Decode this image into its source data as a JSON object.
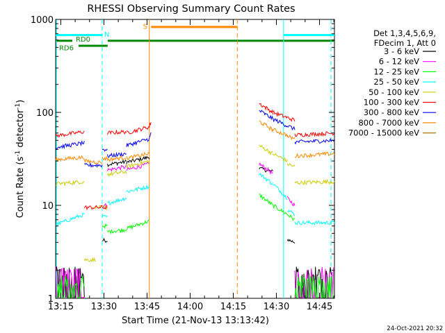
{
  "chart_data": {
    "type": "line",
    "title": "RHESSI Observing Summary Count Rates",
    "xlabel": "Start Time (21-Nov-13 13:13:42)",
    "ylabel_main": "Count Rate (s",
    "ylabel_sup1": "-1",
    "ylabel_mid": " detector",
    "ylabel_sup2": "-1",
    "ylabel_end": ")",
    "y_scale": "log",
    "ylim": [
      1,
      1000
    ],
    "xlim_minutes": [
      -1.8,
      95.2
    ],
    "x_ticks": [
      {
        "label": "13:15",
        "t": 0
      },
      {
        "label": "13:30",
        "t": 15
      },
      {
        "label": "13:45",
        "t": 30
      },
      {
        "label": "14:00",
        "t": 45
      },
      {
        "label": "14:15",
        "t": 60
      },
      {
        "label": "14:30",
        "t": 75
      },
      {
        "label": "14:45",
        "t": 90
      }
    ],
    "y_ticks": [
      {
        "label": "1",
        "v": 1
      },
      {
        "label": "10",
        "v": 10
      },
      {
        "label": "100",
        "v": 100
      },
      {
        "label": "1000",
        "v": 1000
      }
    ],
    "legend": {
      "placement": "right",
      "header1": "Det 1,3,4,5,6,9,",
      "header2": "FDecim 1, Att 0"
    },
    "series": [
      {
        "name": "3 - 6 keV",
        "color": "#000000",
        "segments": [
          {
            "t": [
              -1.8,
              8.2
            ],
            "y": [
              2,
              2
            ]
          },
          {
            "t": [
              14.4,
              16.2
            ],
            "y": [
              4.2,
              4.2
            ]
          },
          {
            "t": [
              16.2,
              22.8
            ],
            "y": [
              27.5,
              29.5
            ]
          },
          {
            "t": [
              22.8,
              30.8
            ],
            "y": [
              29,
              33
            ]
          },
          {
            "t": [
              69,
              73.8
            ],
            "y": [
              25,
              23
            ]
          },
          {
            "t": [
              78.8,
              81.4
            ],
            "y": [
              4.3,
              4.0
            ]
          },
          {
            "t": [
              81.4,
              95.2
            ],
            "y": [
              2,
              2
            ]
          }
        ]
      },
      {
        "name": "6 - 12 keV",
        "color": "#ff00ff",
        "segments": [
          {
            "t": [
              -1.8,
              8.2
            ],
            "y": [
              2,
              2
            ]
          },
          {
            "t": [
              14.4,
              16.2
            ],
            "y": [
              10,
              10
            ]
          },
          {
            "t": [
              16.2,
              22.8
            ],
            "y": [
              24,
              26
            ]
          },
          {
            "t": [
              22.8,
              30.8
            ],
            "y": [
              24,
              28
            ]
          },
          {
            "t": [
              69,
              73.8
            ],
            "y": [
              28,
              22
            ]
          },
          {
            "t": [
              78.8,
              81.4
            ],
            "y": [
              12,
              10
            ]
          },
          {
            "t": [
              81.4,
              95.2
            ],
            "y": [
              2,
              2
            ]
          }
        ]
      },
      {
        "name": "12 - 25 keV",
        "color": "#00ff00",
        "segments": [
          {
            "t": [
              -1.8,
              8.2
            ],
            "y": [
              1.6,
              1.6
            ]
          },
          {
            "t": [
              14.4,
              16.2
            ],
            "y": [
              6,
              6
            ]
          },
          {
            "t": [
              16.2,
              22.8
            ],
            "y": [
              5.2,
              5.5
            ]
          },
          {
            "t": [
              22.8,
              30.8
            ],
            "y": [
              5.6,
              6.8
            ]
          },
          {
            "t": [
              69,
              73.8
            ],
            "y": [
              13,
              10
            ]
          },
          {
            "t": [
              73.8,
              78.8
            ],
            "y": [
              10,
              8
            ]
          },
          {
            "t": [
              78.8,
              81.4
            ],
            "y": [
              8,
              7
            ]
          },
          {
            "t": [
              81.4,
              95.2
            ],
            "y": [
              1.6,
              1.6
            ]
          }
        ]
      },
      {
        "name": "25 - 50 keV",
        "color": "#00ffff",
        "segments": [
          {
            "t": [
              -1.8,
              8.2
            ],
            "y": [
              6.2,
              8
            ]
          },
          {
            "t": [
              14.4,
              16.2
            ],
            "y": [
              7.5,
              7.5
            ]
          },
          {
            "t": [
              16.2,
              22.8
            ],
            "y": [
              10.5,
              12
            ]
          },
          {
            "t": [
              22.8,
              30.8
            ],
            "y": [
              14,
              16
            ]
          },
          {
            "t": [
              69,
              73.8
            ],
            "y": [
              22,
              17
            ]
          },
          {
            "t": [
              73.8,
              78.8
            ],
            "y": [
              17,
              12
            ]
          },
          {
            "t": [
              78.8,
              81.4
            ],
            "y": [
              9,
              8
            ]
          },
          {
            "t": [
              81.4,
              95.2
            ],
            "y": [
              6.5,
              6.5
            ]
          }
        ]
      },
      {
        "name": "50 - 100 keV",
        "color": "#cccc00",
        "segments": [
          {
            "t": [
              -1.8,
              8.2
            ],
            "y": [
              17,
              18
            ]
          },
          {
            "t": [
              8.2,
              12
            ],
            "y": [
              2.6,
              2.6
            ]
          },
          {
            "t": [
              12,
              14.4
            ],
            "y": [
              9.5,
              9.5
            ]
          },
          {
            "t": [
              14.4,
              16.2
            ],
            "y": [
              9.5,
              9.5
            ]
          },
          {
            "t": [
              16.2,
              22.8
            ],
            "y": [
              21.5,
              23
            ]
          },
          {
            "t": [
              22.8,
              30.8
            ],
            "y": [
              26,
              30
            ]
          },
          {
            "t": [
              69,
              73.8
            ],
            "y": [
              44,
              36
            ]
          },
          {
            "t": [
              73.8,
              78.8
            ],
            "y": [
              36,
              30
            ]
          },
          {
            "t": [
              78.8,
              81.4
            ],
            "y": [
              28,
              26
            ]
          },
          {
            "t": [
              81.4,
              95.2
            ],
            "y": [
              17.5,
              18
            ]
          }
        ]
      },
      {
        "name": "100 - 300 keV",
        "color": "#ff0000",
        "segments": [
          {
            "t": [
              -1.8,
              8.2
            ],
            "y": [
              56,
              62
            ]
          },
          {
            "t": [
              8.2,
              14.4
            ],
            "y": [
              9.5,
              9.5
            ]
          },
          {
            "t": [
              14.4,
              16.2
            ],
            "y": [
              9.5,
              9.5
            ]
          },
          {
            "t": [
              16.2,
              22.8
            ],
            "y": [
              60,
              62
            ]
          },
          {
            "t": [
              22.8,
              30.8
            ],
            "y": [
              60,
              70
            ]
          },
          {
            "t": [
              30.8,
              31.4
            ],
            "y": [
              70,
              80
            ]
          },
          {
            "t": [
              69,
              73.8
            ],
            "y": [
              125,
              100
            ]
          },
          {
            "t": [
              73.8,
              78.8
            ],
            "y": [
              100,
              88
            ]
          },
          {
            "t": [
              78.8,
              81.4
            ],
            "y": [
              88,
              82
            ]
          },
          {
            "t": [
              81.4,
              95.2
            ],
            "y": [
              57,
              60
            ]
          }
        ]
      },
      {
        "name": "300 - 800 keV",
        "color": "#0000ff",
        "segments": [
          {
            "t": [
              -1.8,
              8.2
            ],
            "y": [
              42,
              47
            ]
          },
          {
            "t": [
              8.2,
              14.4
            ],
            "y": [
              27,
              27
            ]
          },
          {
            "t": [
              14.4,
              16.2
            ],
            "y": [
              40,
              40
            ]
          },
          {
            "t": [
              16.2,
              22.8
            ],
            "y": [
              34,
              36
            ]
          },
          {
            "t": [
              22.8,
              30.8
            ],
            "y": [
              44,
              52
            ]
          },
          {
            "t": [
              30.8,
              31.4
            ],
            "y": [
              52,
              60
            ]
          },
          {
            "t": [
              69,
              73.8
            ],
            "y": [
              105,
              85
            ]
          },
          {
            "t": [
              73.8,
              78.8
            ],
            "y": [
              85,
              72
            ]
          },
          {
            "t": [
              78.8,
              81.4
            ],
            "y": [
              72,
              66
            ]
          },
          {
            "t": [
              81.4,
              95.2
            ],
            "y": [
              48,
              50
            ]
          }
        ]
      },
      {
        "name": "800 - 7000 keV",
        "color": "#ff8800",
        "segments": [
          {
            "t": [
              -1.8,
              8.2
            ],
            "y": [
              31,
              33
            ]
          },
          {
            "t": [
              8.2,
              14.4
            ],
            "y": [
              30,
              29
            ]
          },
          {
            "t": [
              14.4,
              16.2
            ],
            "y": [
              32,
              32
            ]
          },
          {
            "t": [
              16.2,
              22.8
            ],
            "y": [
              31,
              33
            ]
          },
          {
            "t": [
              22.8,
              30.8
            ],
            "y": [
              32,
              36
            ]
          },
          {
            "t": [
              69,
              73.8
            ],
            "y": [
              80,
              65
            ]
          },
          {
            "t": [
              73.8,
              78.8
            ],
            "y": [
              65,
              57
            ]
          },
          {
            "t": [
              78.8,
              81.4
            ],
            "y": [
              55,
              52
            ]
          },
          {
            "t": [
              81.4,
              95.2
            ],
            "y": [
              34,
              36
            ]
          }
        ]
      },
      {
        "name": "7000 - 15000 keV",
        "color": "#aa7700",
        "segments": []
      }
    ],
    "annotations": [
      {
        "type": "bar",
        "label": "N",
        "color": "#00ffff",
        "t": [
          -1.8,
          14.4
        ],
        "v": 680,
        "label_t": 15.1,
        "label_v": 700
      },
      {
        "type": "bar",
        "label": "N",
        "color": "#00ffff",
        "t": [
          77.5,
          95.2
        ],
        "v": 680
      },
      {
        "type": "bar",
        "label": "S",
        "color": "#ff8800",
        "t": [
          31.4,
          61.4
        ],
        "v": 830,
        "label_t": 28.6,
        "label_v": 850
      },
      {
        "type": "bar",
        "label": "RD0",
        "color": "#008800",
        "t": [
          -1.8,
          4
        ],
        "v": 590,
        "label_t": 5.2,
        "label_v": 620
      },
      {
        "type": "bar",
        "label": "RD0",
        "color": "#008800",
        "t": [
          16.3,
          95.2
        ],
        "v": 590
      },
      {
        "type": "bar",
        "label": "RD6",
        "color": "#008800",
        "t": [
          6.2,
          16.3
        ],
        "v": 520,
        "label_t": -0.6,
        "label_v": 500
      },
      {
        "type": "vline",
        "color": "#00ffff",
        "dash": false,
        "t": [
          -1.5,
          77.5
        ]
      },
      {
        "type": "vline",
        "color": "#00ffff",
        "dash": true,
        "t": [
          14.4,
          94
        ]
      },
      {
        "type": "vline",
        "color": "#ff8800",
        "dash": false,
        "t": [
          30.8
        ]
      },
      {
        "type": "vline",
        "color": "#ff8800",
        "dash": true,
        "t": [
          61.4
        ]
      }
    ],
    "footer_timestamp": "24-Oct-2021 20:32"
  }
}
